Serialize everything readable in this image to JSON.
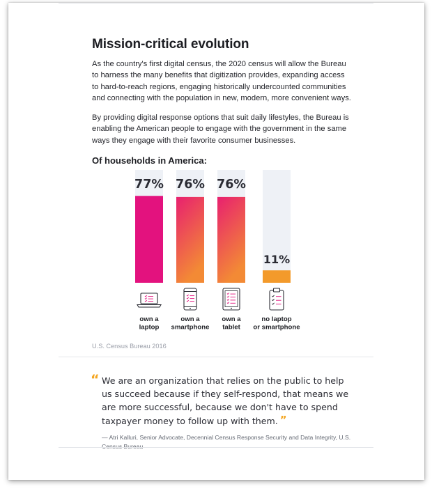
{
  "title": "Mission-critical evolution",
  "paragraphs": [
    "As the country's first digital census, the 2020 census will allow the Bureau to harness the many benefits that digitization provides, expanding access to hard-to-reach regions, engaging historically undercounted communities and connecting with the population in new, modern, more convenient ways.",
    "By providing digital response options that suit daily lifestyles, the Bureau is enabling the American people to engage with the government in the same ways they engage with their favorite consumer businesses."
  ],
  "chart_heading": "Of households in America:",
  "chart_data": {
    "type": "bar",
    "title": "Of households in America:",
    "categories": [
      "own a laptop",
      "own a smartphone",
      "own a tablet",
      "no laptop or smartphone"
    ],
    "category_lines": [
      [
        "own a",
        "laptop"
      ],
      [
        "own a",
        "smartphone"
      ],
      [
        "own a",
        "tablet"
      ],
      [
        "no laptop",
        "or smartphone"
      ]
    ],
    "values": [
      77,
      76,
      76,
      11
    ],
    "value_labels": [
      "77%",
      "76%",
      "76%",
      "11%"
    ],
    "ylim": [
      0,
      100
    ],
    "icons": [
      "laptop-icon",
      "smartphone-icon",
      "tablet-icon",
      "clipboard-checklist-icon"
    ],
    "colors": {
      "pink": "#e3127e",
      "magenta_to_orange": [
        "#e8206f",
        "#f38a35"
      ],
      "orange": "#f39a2b",
      "track": "#eef1f6"
    },
    "grid": false
  },
  "source": "U.S. Census Bureau 2016",
  "quote": {
    "text": "We are an organization that relies on the public to help us succeed because if they self-respond, that means we are more successful, because we don't have to spend taxpayer money to follow up with them.",
    "attribution": "— Atri Kalluri, Senior Advocate, Decennial Census Response Security and Data Integrity, U.S. Census Bureau",
    "accent": "#f4a621"
  }
}
